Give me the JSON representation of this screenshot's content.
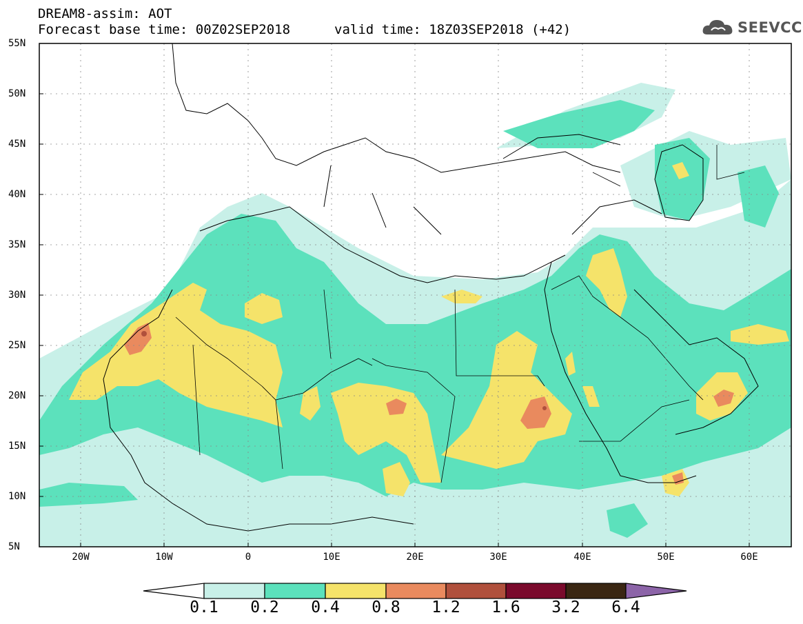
{
  "title": {
    "line1": "DREAM8-assim: AOT",
    "line2": "Forecast base time: 00Z02SEP2018",
    "valid": "valid time: 18Z03SEP2018 (+42)"
  },
  "logo": {
    "text": "SEEVCCC",
    "icon": "cloud-icon",
    "color": "#555555"
  },
  "map": {
    "lon_range": [
      -25,
      65
    ],
    "lat_range": [
      5,
      55
    ],
    "lat_ticks": [
      "55N",
      "50N",
      "45N",
      "40N",
      "35N",
      "30N",
      "25N",
      "20N",
      "15N",
      "10N",
      "5N"
    ],
    "lon_ticks": [
      "20W",
      "10W",
      "0",
      "10E",
      "20E",
      "30E",
      "40E",
      "50E",
      "60E"
    ],
    "grid": "dotted"
  },
  "colorbar": {
    "labels": [
      "0.1",
      "0.2",
      "0.4",
      "0.8",
      "1.2",
      "1.6",
      "3.2",
      "6.4"
    ],
    "colors": [
      "#ffffff",
      "#c8f0e8",
      "#5ce1bc",
      "#f5e36a",
      "#e98a5e",
      "#b0503c",
      "#7a0a2c",
      "#3a2612",
      "#8c64a8"
    ]
  }
}
